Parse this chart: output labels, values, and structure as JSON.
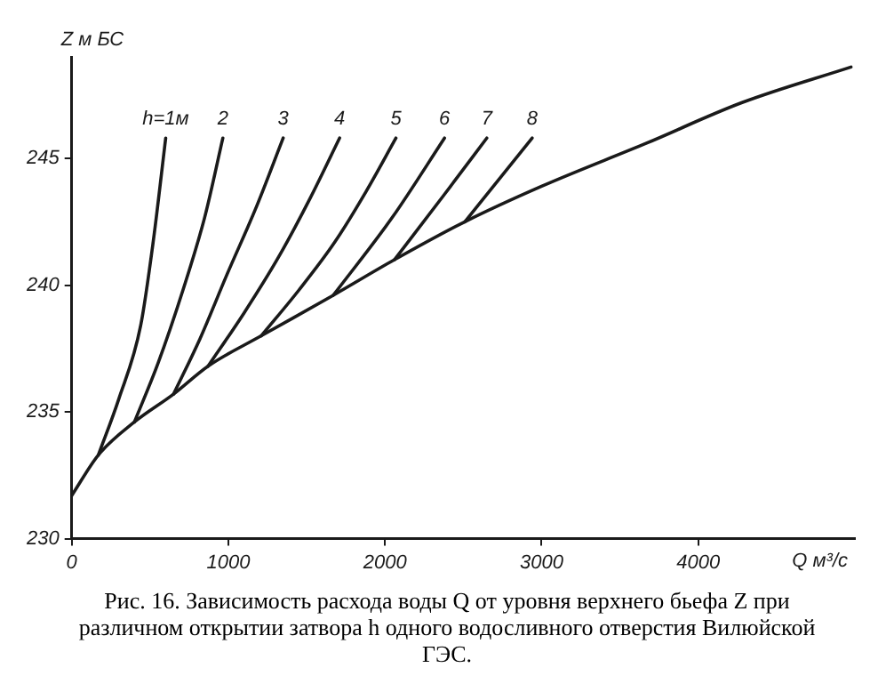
{
  "chart_data": {
    "type": "line",
    "title": "Рис. 16. Зависимость расхода воды Q от уровня верхнего бьефа Z при различном открытии затвора h одного водосливного отверстия Вилюйской ГЭС.",
    "xlabel": "Q м³/с",
    "ylabel": "Z м БС",
    "xlim": [
      0,
      5000
    ],
    "ylim": [
      230,
      249
    ],
    "xticks": [
      0,
      1000,
      2000,
      3000,
      4000
    ],
    "yticks": [
      230,
      235,
      240,
      245
    ],
    "grid": false,
    "legend": false,
    "marker": "none",
    "line_style": "solid",
    "series": [
      {
        "color": "#1a1a1a",
        "x": [
          0,
          170,
          400,
          650,
          870,
          1210,
          1670,
          2060,
          2510,
          3000,
          3670,
          4280,
          4975
        ],
        "values": [
          231.7,
          233.3,
          234.6,
          235.7,
          236.8,
          238.0,
          239.6,
          241.0,
          242.5,
          243.9,
          245.6,
          247.2,
          248.6
        ]
      },
      {
        "name": "h=1м",
        "color": "#1a1a1a",
        "x": [
          170,
          300,
          440,
          520,
          600
        ],
        "values": [
          233.3,
          235.5,
          238.4,
          241.7,
          245.8
        ]
      },
      {
        "name": "2",
        "color": "#1a1a1a",
        "x": [
          400,
          550,
          710,
          850,
          965
        ],
        "values": [
          234.6,
          236.9,
          239.8,
          242.7,
          245.8
        ]
      },
      {
        "name": "3",
        "color": "#1a1a1a",
        "x": [
          650,
          820,
          990,
          1180,
          1350
        ],
        "values": [
          235.7,
          237.9,
          240.4,
          243.1,
          245.8
        ]
      },
      {
        "name": "4",
        "color": "#1a1a1a",
        "x": [
          870,
          1100,
          1320,
          1520,
          1710
        ],
        "values": [
          236.8,
          238.9,
          241.1,
          243.4,
          245.8
        ]
      },
      {
        "name": "5",
        "color": "#1a1a1a",
        "x": [
          1210,
          1450,
          1680,
          1880,
          2070
        ],
        "values": [
          238.0,
          239.8,
          241.7,
          243.7,
          245.8
        ]
      },
      {
        "name": "6",
        "color": "#1a1a1a",
        "x": [
          1670,
          2050,
          2380
        ],
        "values": [
          239.6,
          242.7,
          245.8
        ]
      },
      {
        "name": "7",
        "color": "#1a1a1a",
        "x": [
          2060,
          2370,
          2650
        ],
        "values": [
          241.0,
          243.5,
          245.8
        ]
      },
      {
        "name": "8",
        "color": "#1a1a1a",
        "x": [
          2510,
          2940
        ],
        "values": [
          242.5,
          245.8
        ]
      }
    ]
  }
}
